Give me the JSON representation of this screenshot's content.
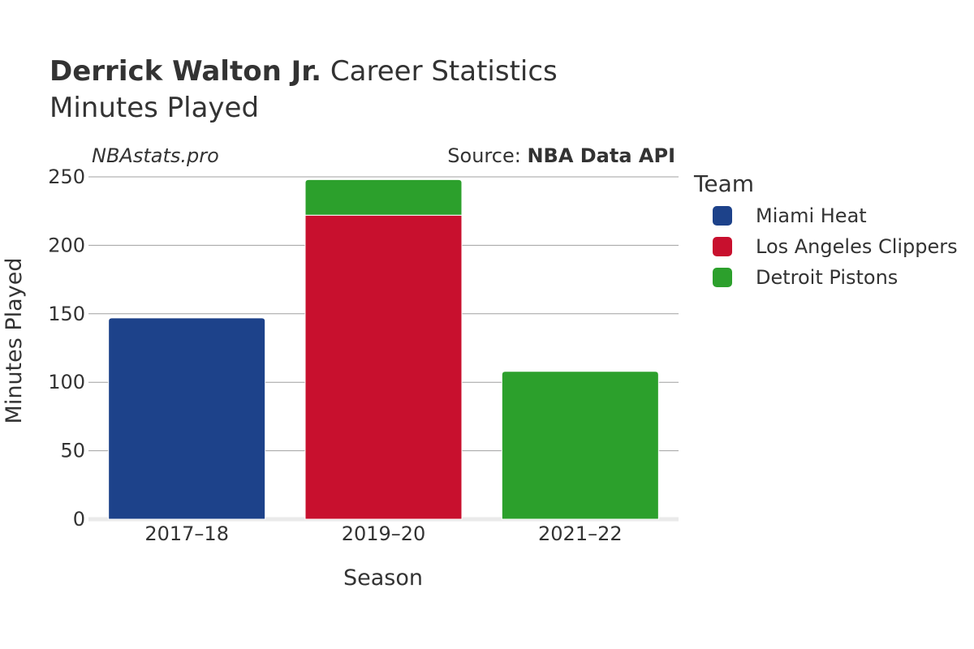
{
  "header": {
    "title_bold": "Derrick Walton Jr.",
    "title_rest": "Career Statistics",
    "subtitle": "Minutes Played",
    "watermark": "NBAstats.pro",
    "source_prefix": "Source:",
    "source_name": "NBA Data API"
  },
  "chart_data": {
    "type": "bar",
    "stacked": true,
    "categories": [
      "2017–18",
      "2019–20",
      "2021–22"
    ],
    "series": [
      {
        "name": "Miami Heat",
        "color": "#1d428a",
        "values": [
          147,
          0,
          0
        ]
      },
      {
        "name": "Los Angeles Clippers",
        "color": "#c8102e",
        "values": [
          0,
          222,
          0
        ]
      },
      {
        "name": "Detroit Pistons",
        "color": "#2ca02c",
        "values": [
          0,
          26,
          108
        ]
      }
    ],
    "xlabel": "Season",
    "ylabel": "Minutes Played",
    "ylim": [
      0,
      250
    ],
    "yticks": [
      0,
      50,
      100,
      150,
      200,
      250
    ],
    "grid": true,
    "legend_title": "Team",
    "legend_position": "right"
  }
}
